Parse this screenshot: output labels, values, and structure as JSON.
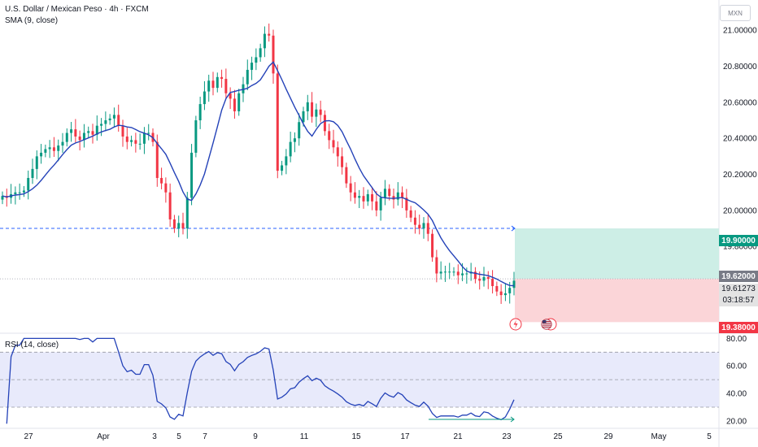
{
  "header": {
    "symbol_line": "U.S. Dollar / Mexican Peso · 4h · FXCM",
    "indicator_line": "SMA (9, close)"
  },
  "currency": "MXN",
  "rsi_label": "RSI (14, close)",
  "price_scale": {
    "ticks": [
      "21.00000",
      "20.80000",
      "20.60000",
      "20.40000",
      "20.20000",
      "20.00000",
      "19.80000"
    ],
    "target_label": "19.90000",
    "entry_label": "19.62000",
    "current_price": "19.61273",
    "countdown": "03:18:57",
    "stop_label": "19.38000"
  },
  "rsi_scale": {
    "ticks": [
      "80.00",
      "60.00",
      "40.00",
      "20.00"
    ]
  },
  "time_axis": {
    "labels": [
      "27",
      "Apr",
      "3",
      "5",
      "7",
      "9",
      "11",
      "15",
      "17",
      "21",
      "23",
      "25",
      "29",
      "May",
      "5"
    ]
  },
  "colors": {
    "up": "#089981",
    "down": "#f23645",
    "sma": "#2442b8",
    "rsi": "#2442b8",
    "target_zone": "#cdeee6",
    "stop_zone": "#fbd5d8",
    "rsi_band": "#e8eafb",
    "dashed": "#2962ff"
  },
  "markers": [
    "lightning-event-icon",
    "us-flag-event-icon"
  ],
  "chart_data": {
    "type": "candlestick",
    "title": "U.S. Dollar / Mexican Peso · 4h · FXCM",
    "y_range": [
      19.35,
      21.1
    ],
    "rsi_range": [
      17,
      82
    ],
    "close_series": [
      20.08,
      20.07,
      20.09,
      20.1,
      20.1,
      20.11,
      20.18,
      20.23,
      20.3,
      20.32,
      20.34,
      20.35,
      20.33,
      20.36,
      20.38,
      20.43,
      20.45,
      20.41,
      20.39,
      20.43,
      20.44,
      20.42,
      20.47,
      20.48,
      20.5,
      20.51,
      20.53,
      20.47,
      20.41,
      20.38,
      20.39,
      20.37,
      20.37,
      20.43,
      20.43,
      20.38,
      20.18,
      20.15,
      20.1,
      19.95,
      19.9,
      19.93,
      19.9,
      20.07,
      20.32,
      20.5,
      20.59,
      20.66,
      20.72,
      20.68,
      20.74,
      20.73,
      20.65,
      20.62,
      20.55,
      20.65,
      20.7,
      20.78,
      20.82,
      20.85,
      20.9,
      20.98,
      20.97,
      20.76,
      20.22,
      20.25,
      20.3,
      20.38,
      20.4,
      20.49,
      20.55,
      20.6,
      20.52,
      20.56,
      20.53,
      20.44,
      20.39,
      20.35,
      20.3,
      20.24,
      20.15,
      20.1,
      20.07,
      20.08,
      20.05,
      20.09,
      20.05,
      20.0,
      20.07,
      20.12,
      20.08,
      20.06,
      20.1,
      20.07,
      20.0,
      19.96,
      19.92,
      19.9,
      19.93,
      19.87,
      19.74,
      19.65,
      19.66,
      19.66,
      19.66,
      19.66,
      19.64,
      19.65,
      19.65,
      19.66,
      19.62,
      19.61,
      19.63,
      19.62,
      19.58,
      19.55,
      19.53,
      19.54,
      19.57,
      19.61
    ]
  }
}
